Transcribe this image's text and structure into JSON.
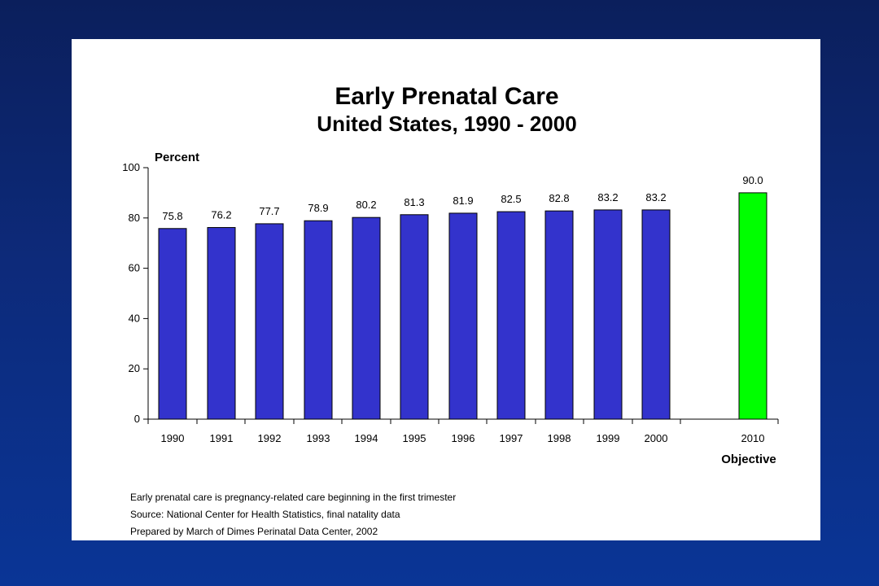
{
  "chart_data": {
    "type": "bar",
    "title": "Early Prenatal Care",
    "subtitle": "United States, 1990 - 2000",
    "ylabel": "Percent",
    "xlabel": "",
    "ylim": [
      0,
      100
    ],
    "yticks": [
      0,
      20,
      40,
      60,
      80,
      100
    ],
    "categories": [
      "1990",
      "1991",
      "1992",
      "1993",
      "1994",
      "1995",
      "1996",
      "1997",
      "1998",
      "1999",
      "2000",
      "2010"
    ],
    "values": [
      75.8,
      76.2,
      77.7,
      78.9,
      80.2,
      81.3,
      81.9,
      82.5,
      82.8,
      83.2,
      83.2,
      90.0
    ],
    "value_labels": [
      "75.8",
      "76.2",
      "77.7",
      "78.9",
      "80.2",
      "81.3",
      "81.9",
      "82.5",
      "82.8",
      "83.2",
      "83.2",
      "90.0"
    ],
    "bar_colors": [
      "#3333cc",
      "#3333cc",
      "#3333cc",
      "#3333cc",
      "#3333cc",
      "#3333cc",
      "#3333cc",
      "#3333cc",
      "#3333cc",
      "#3333cc",
      "#3333cc",
      "#00ff00"
    ],
    "objective_label": "Objective",
    "grid": false,
    "legend": "none"
  },
  "notes": [
    "Early prenatal care is pregnancy-related care beginning in the first trimester",
    "Source: National Center for Health Statistics, final natality data",
    "Prepared by March of Dimes Perinatal Data Center, 2002"
  ],
  "colors": {
    "background": "#0d2a7a",
    "panel": "#ffffff",
    "bar": "#3333cc",
    "objective_bar": "#00ff00"
  }
}
